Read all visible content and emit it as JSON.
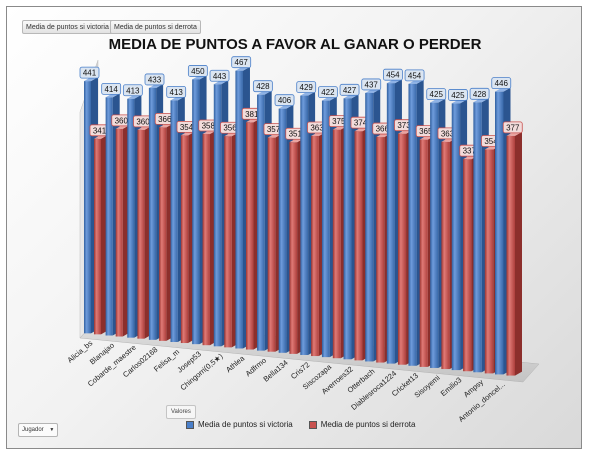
{
  "filters": {
    "tab_win": "Media de puntos si victoria",
    "tab_loss": "Media de puntos si derrota",
    "valores": "Valores",
    "jugador": "Jugador",
    "dropdown_glyph": "▼"
  },
  "colors": {
    "victoria": "#4a7fc9",
    "derrota": "#c8514e",
    "victoria_label": "#dbe5f1",
    "derrota_label": "#f2dcdb"
  },
  "chart_data": {
    "type": "bar",
    "title": "MEDIA DE PUNTOS A FAVOR AL GANAR O PERDER",
    "categories": [
      "Alicia_bs",
      "Blanajao",
      "Cobarde_maestre",
      "Carlos02168",
      "Felisa_m",
      "Josep53",
      "Chingorri(0,5★)",
      "Athlea",
      "Adfrmo",
      "Bella134",
      "Cris72",
      "Siscozapa",
      "Averroes32",
      "Otterbach",
      "Diablesroca1224",
      "Cricket13",
      "Sisoyemi",
      "Emilio3",
      "Ampsy",
      "Antonio_doncel..."
    ],
    "series": [
      {
        "name": "Media de puntos si victoria",
        "values": [
          441,
          414,
          413,
          433,
          413,
          450,
          443,
          467,
          428,
          406,
          429,
          422,
          427,
          437,
          454,
          454,
          425,
          425,
          428,
          446
        ]
      },
      {
        "name": "Media de puntos si derrota",
        "values": [
          341,
          360,
          360,
          366,
          354,
          358,
          356,
          381,
          357,
          351,
          363,
          375,
          374,
          366,
          373,
          365,
          363,
          337,
          354,
          377
        ]
      }
    ],
    "legend_position": "bottom",
    "grid": false
  }
}
